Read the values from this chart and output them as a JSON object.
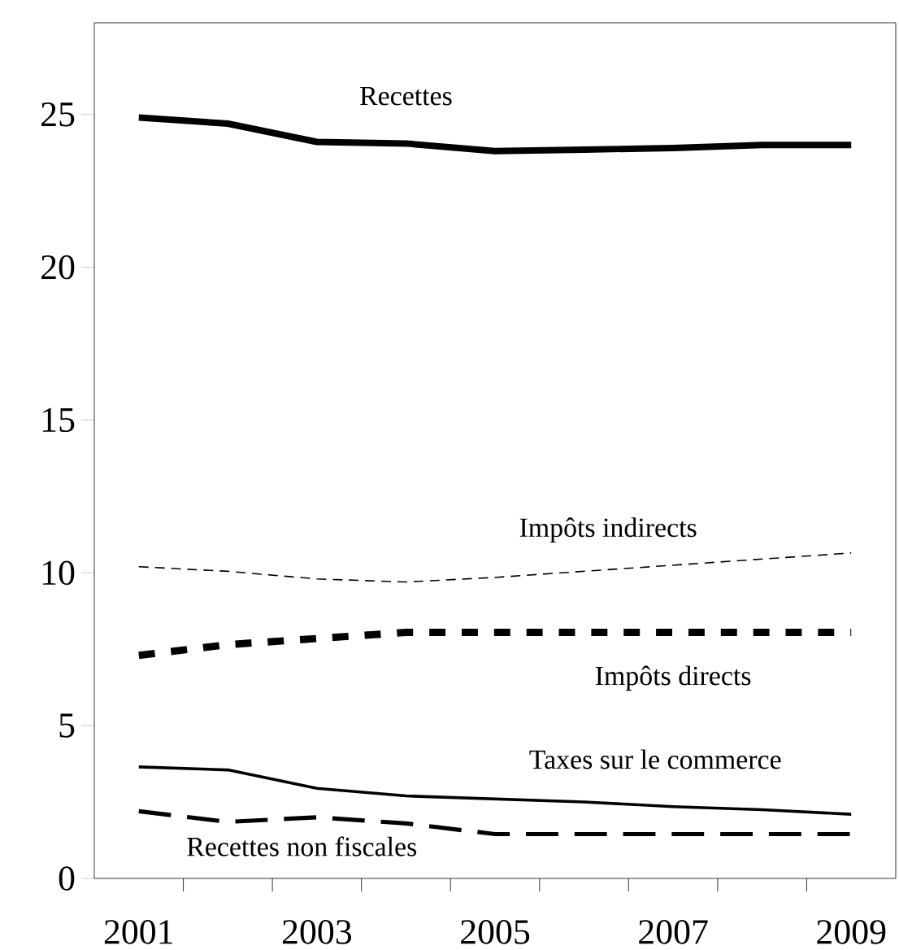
{
  "chart_data": {
    "type": "line",
    "categories": [
      "2001",
      null,
      "2003",
      null,
      "2005",
      null,
      "2007",
      null,
      "2009"
    ],
    "ylim": [
      0,
      28
    ],
    "yticks": [
      0,
      5,
      10,
      15,
      20,
      25
    ],
    "series": [
      {
        "name": "Recettes",
        "color": "#000000",
        "line_style": "solid",
        "values": [
          24.9,
          24.7,
          24.1,
          24.05,
          23.8,
          23.85,
          23.9,
          24.0,
          24.0
        ]
      },
      {
        "name": "Impôts indirects",
        "color": "#000000",
        "line_style": "dashed",
        "values": [
          10.2,
          10.05,
          9.8,
          9.7,
          9.85,
          10.05,
          10.25,
          10.45,
          10.65
        ]
      },
      {
        "name": "Impôts directs",
        "color": "#000000",
        "line_style": "dashed",
        "values": [
          7.3,
          7.65,
          7.85,
          8.05,
          8.05,
          8.05,
          8.05,
          8.05,
          8.05
        ]
      },
      {
        "name": "Taxes sur le commerce",
        "color": "#000000",
        "line_style": "solid",
        "values": [
          3.65,
          3.55,
          2.95,
          2.7,
          2.6,
          2.5,
          2.35,
          2.25,
          2.1
        ]
      },
      {
        "name": "Recettes non fiscales",
        "color": "#000000",
        "line_style": "dashed",
        "values": [
          2.2,
          1.85,
          2.0,
          1.8,
          1.45,
          1.45,
          1.45,
          1.45,
          1.45
        ]
      }
    ]
  }
}
